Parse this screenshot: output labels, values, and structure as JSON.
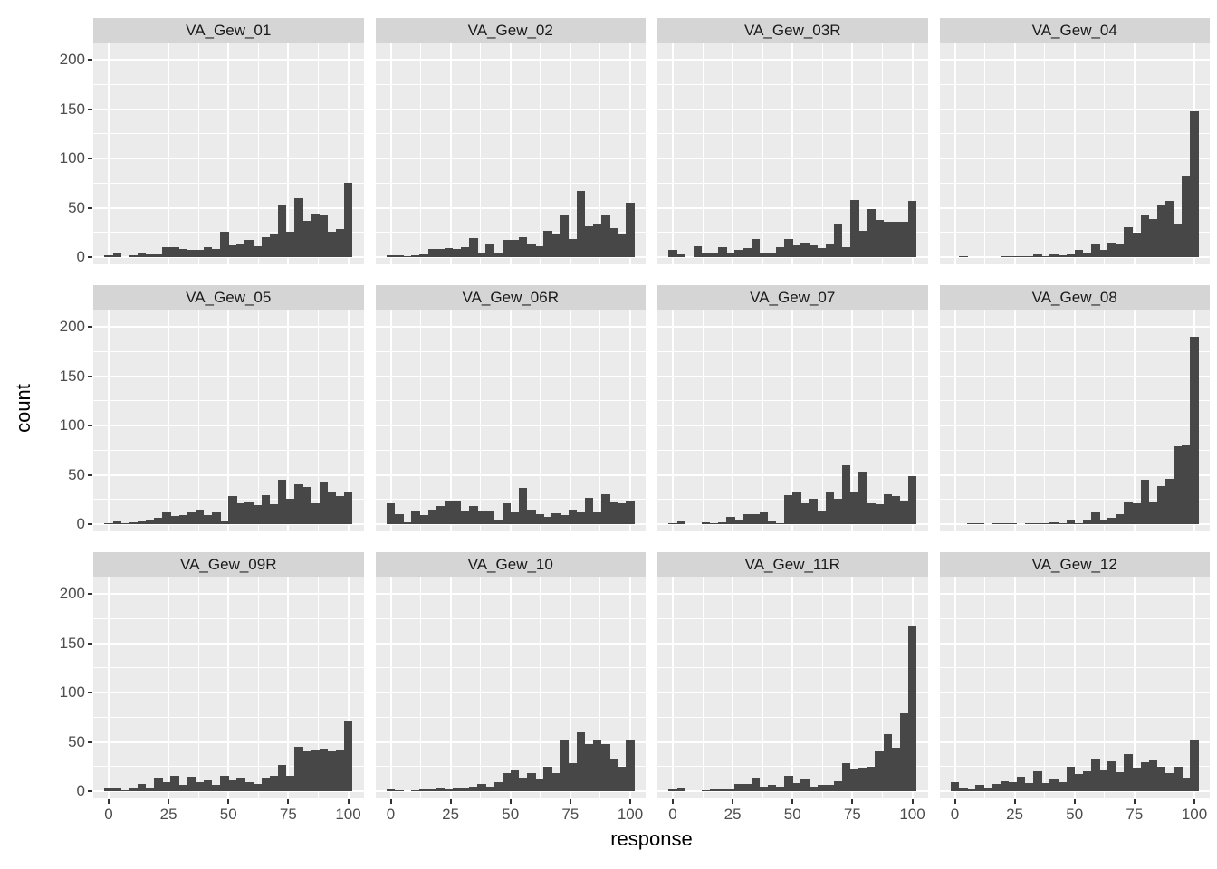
{
  "chart_data": {
    "type": "bar",
    "subtype": "faceted-histograms",
    "title": "",
    "xlabel": "response",
    "ylabel": "count",
    "x_ticks": [
      0,
      25,
      50,
      75,
      100
    ],
    "y_ticks": [
      0,
      50,
      100,
      150,
      200
    ],
    "xlim": [
      -6,
      106
    ],
    "ylim": [
      0,
      217
    ],
    "bins": 30,
    "grid": "white major and minor gridlines on gray panel",
    "legend_position": "none",
    "facet_layout": {
      "rows": 3,
      "cols": 4
    },
    "series": [
      {
        "name": "VA_Gew_01",
        "values": [
          2,
          4,
          0,
          2,
          4,
          3,
          3,
          10,
          10,
          8,
          7,
          7,
          10,
          8,
          26,
          12,
          14,
          17,
          11,
          20,
          23,
          52,
          26,
          60,
          37,
          44,
          43,
          26,
          28,
          75
        ]
      },
      {
        "name": "VA_Gew_02",
        "values": [
          2,
          2,
          1,
          2,
          3,
          8,
          8,
          9,
          8,
          10,
          19,
          5,
          14,
          5,
          17,
          17,
          20,
          14,
          11,
          27,
          23,
          43,
          18,
          67,
          31,
          34,
          43,
          29,
          24,
          55
        ]
      },
      {
        "name": "VA_Gew_03R",
        "values": [
          7,
          3,
          0,
          11,
          4,
          4,
          10,
          5,
          7,
          9,
          18,
          5,
          4,
          10,
          18,
          12,
          15,
          12,
          9,
          13,
          33,
          10,
          58,
          27,
          49,
          38,
          36,
          36,
          36,
          57
        ]
      },
      {
        "name": "VA_Gew_04",
        "values": [
          0,
          1,
          0,
          0,
          0,
          0,
          1,
          1,
          1,
          1,
          3,
          1,
          3,
          2,
          3,
          7,
          4,
          13,
          7,
          15,
          14,
          30,
          25,
          42,
          39,
          52,
          57,
          34,
          83,
          148
        ]
      },
      {
        "name": "VA_Gew_05",
        "values": [
          1,
          3,
          1,
          2,
          3,
          4,
          6,
          12,
          8,
          9,
          12,
          15,
          9,
          12,
          3,
          28,
          21,
          22,
          19,
          29,
          20,
          45,
          26,
          40,
          38,
          21,
          43,
          33,
          28,
          33
        ]
      },
      {
        "name": "VA_Gew_06R",
        "values": [
          21,
          10,
          2,
          13,
          9,
          15,
          18,
          23,
          23,
          14,
          18,
          14,
          14,
          5,
          21,
          12,
          37,
          15,
          10,
          7,
          11,
          9,
          15,
          12,
          27,
          12,
          30,
          22,
          21,
          23
        ]
      },
      {
        "name": "VA_Gew_07",
        "values": [
          1,
          3,
          0,
          0,
          2,
          1,
          2,
          7,
          4,
          10,
          10,
          12,
          3,
          1,
          29,
          32,
          21,
          26,
          14,
          32,
          26,
          60,
          32,
          53,
          21,
          20,
          30,
          28,
          23,
          49
        ]
      },
      {
        "name": "VA_Gew_08",
        "values": [
          0,
          0,
          1,
          1,
          0,
          1,
          1,
          1,
          0,
          1,
          1,
          1,
          2,
          1,
          4,
          1,
          4,
          12,
          5,
          6,
          10,
          22,
          21,
          45,
          22,
          39,
          46,
          79,
          80,
          190
        ]
      },
      {
        "name": "VA_Gew_09R",
        "values": [
          4,
          3,
          1,
          4,
          7,
          4,
          13,
          9,
          16,
          6,
          15,
          9,
          11,
          6,
          16,
          11,
          14,
          9,
          7,
          13,
          16,
          27,
          16,
          45,
          40,
          42,
          43,
          40,
          42,
          72
        ]
      },
      {
        "name": "VA_Gew_10",
        "values": [
          2,
          1,
          0,
          1,
          2,
          2,
          4,
          2,
          4,
          4,
          5,
          7,
          5,
          9,
          18,
          21,
          13,
          18,
          12,
          25,
          18,
          51,
          28,
          60,
          48,
          51,
          48,
          32,
          25,
          52
        ]
      },
      {
        "name": "VA_Gew_11R",
        "values": [
          2,
          3,
          0,
          0,
          1,
          2,
          2,
          2,
          7,
          7,
          13,
          5,
          6,
          5,
          16,
          8,
          12,
          5,
          6,
          6,
          10,
          28,
          22,
          24,
          25,
          40,
          58,
          44,
          79,
          167
        ]
      },
      {
        "name": "VA_Gew_12",
        "values": [
          9,
          4,
          2,
          6,
          4,
          7,
          10,
          9,
          15,
          8,
          20,
          8,
          12,
          9,
          25,
          17,
          20,
          33,
          21,
          30,
          19,
          38,
          24,
          29,
          31,
          25,
          18,
          25,
          13,
          52
        ]
      }
    ]
  },
  "axes": {
    "x_label": "response",
    "y_label": "count"
  },
  "colors": {
    "bar": "#474747",
    "panel_background": "#EBEBEB",
    "strip_background": "#D5D5D5",
    "strip_text": "#1A1A1A",
    "gridline": "#FFFFFF",
    "tick_text": "#4D4D4D",
    "tick_mark": "#333333",
    "axis_title_text": "#000000",
    "figure_background": "#FFFFFF"
  }
}
